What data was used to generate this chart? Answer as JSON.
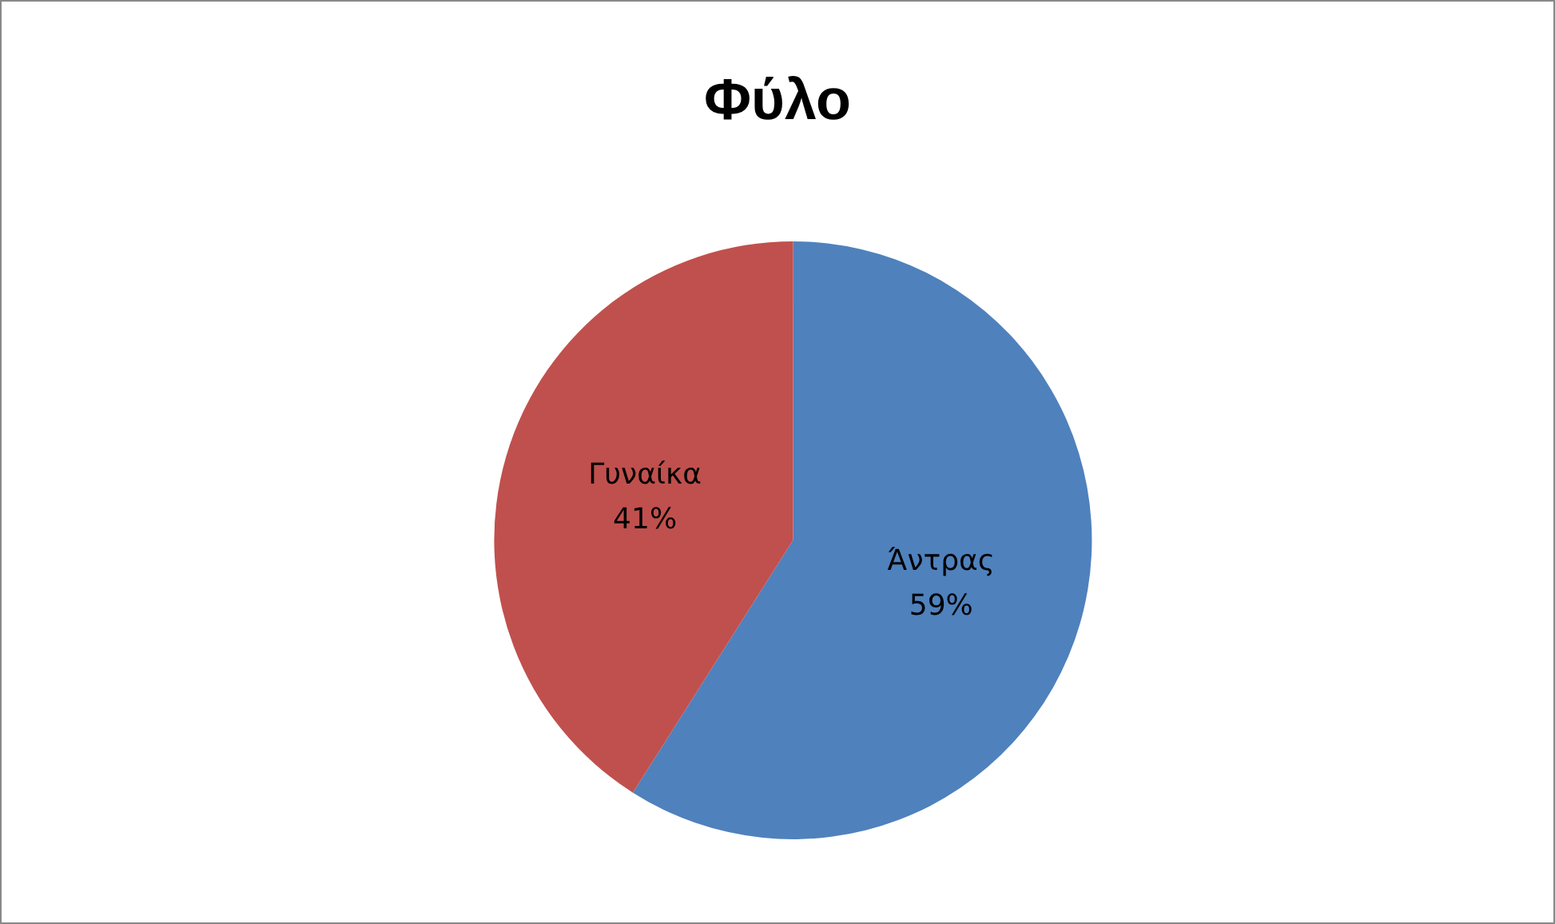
{
  "chart_data": {
    "type": "pie",
    "title": "Φύλο",
    "categories": [
      "Άντρας",
      "Γυναίκα"
    ],
    "values": [
      59,
      41
    ],
    "value_labels": [
      "59%",
      "41%"
    ],
    "colors": [
      "#4f81bd",
      "#c0504d"
    ],
    "legend": false
  }
}
